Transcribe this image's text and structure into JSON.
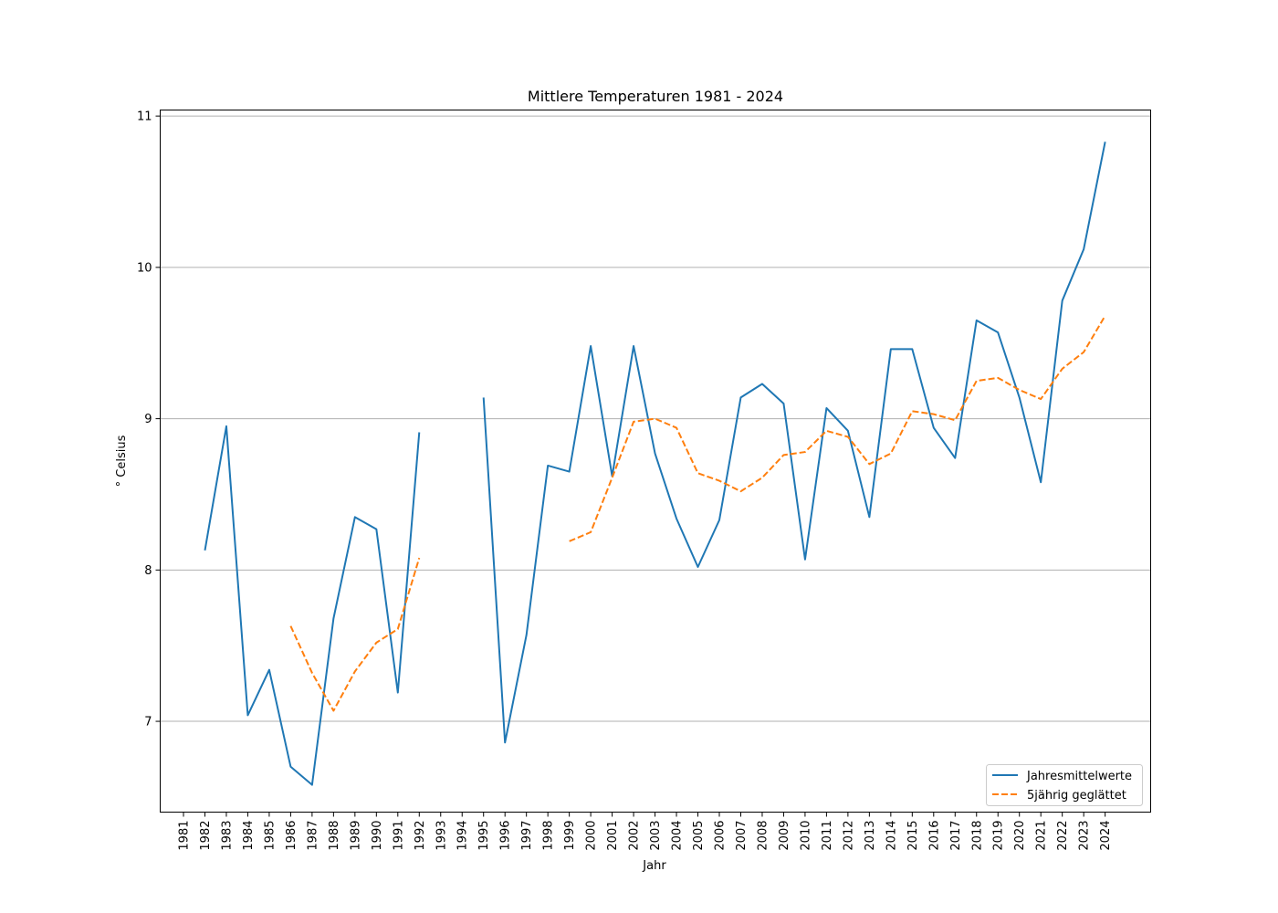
{
  "chart_data": {
    "type": "line",
    "title": "Mittlere Temperaturen 1981 - 2024",
    "xlabel": "Jahr",
    "ylabel": "° Celsius",
    "categories": [
      "1981",
      "1982",
      "1983",
      "1984",
      "1985",
      "1986",
      "1987",
      "1988",
      "1989",
      "1990",
      "1991",
      "1992",
      "1993",
      "1994",
      "1995",
      "1996",
      "1997",
      "1998",
      "1999",
      "2000",
      "2001",
      "2002",
      "2003",
      "2004",
      "2005",
      "2006",
      "2007",
      "2008",
      "2009",
      "2010",
      "2011",
      "2012",
      "2013",
      "2014",
      "2015",
      "2016",
      "2017",
      "2018",
      "2019",
      "2020",
      "2021",
      "2022",
      "2023",
      "2024"
    ],
    "yticks": [
      7,
      8,
      9,
      10,
      11
    ],
    "ylim": [
      6.4,
      11.04
    ],
    "grid": "horizontal",
    "legend_position": "lower-right",
    "series": [
      {
        "name": "Jahresmittelwerte",
        "color": "#1f77b4",
        "style": "solid",
        "values": [
          null,
          8.13,
          8.95,
          7.04,
          7.34,
          6.7,
          6.58,
          7.68,
          8.35,
          8.27,
          7.19,
          8.91,
          null,
          null,
          9.14,
          6.86,
          7.57,
          8.69,
          8.65,
          9.48,
          8.62,
          9.48,
          8.77,
          8.34,
          8.02,
          8.33,
          9.14,
          9.23,
          9.1,
          8.07,
          9.07,
          8.92,
          8.35,
          9.46,
          9.46,
          8.94,
          8.74,
          9.65,
          9.57,
          9.14,
          8.58,
          9.78,
          10.12,
          10.83
        ]
      },
      {
        "name": "5jährig geglättet",
        "color": "#ff7f0e",
        "style": "dashed",
        "values": [
          null,
          null,
          null,
          null,
          null,
          7.63,
          7.32,
          7.07,
          7.33,
          7.52,
          7.61,
          8.08,
          null,
          null,
          null,
          null,
          null,
          null,
          8.19,
          8.25,
          8.61,
          8.98,
          9.0,
          8.94,
          8.64,
          8.59,
          8.52,
          8.61,
          8.76,
          8.78,
          8.92,
          8.88,
          8.7,
          8.77,
          9.05,
          9.03,
          8.99,
          9.25,
          9.27,
          9.19,
          9.13,
          9.33,
          9.44,
          9.68
        ]
      }
    ]
  }
}
